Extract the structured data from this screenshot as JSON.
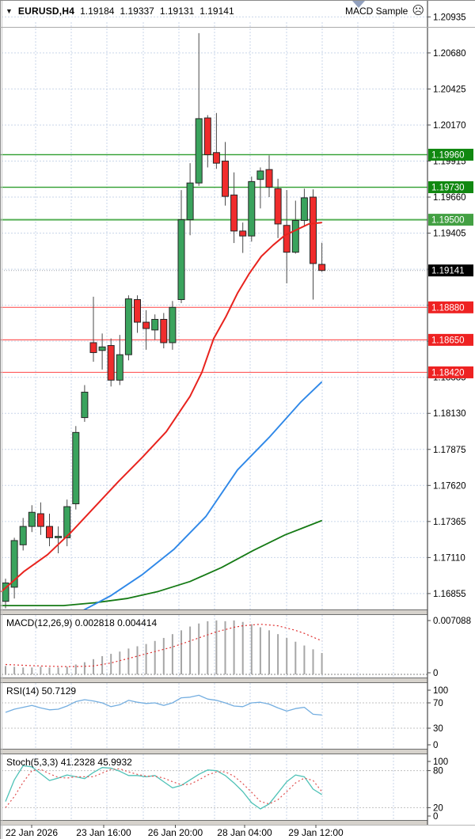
{
  "header": {
    "dropdown_icon": "▼",
    "symbol": "EURUSD,H4",
    "open": "1.19184",
    "high": "1.19337",
    "low": "1.19131",
    "close": "1.19141",
    "ea_name": "MACD Sample",
    "ea_icon_glyph": "☹"
  },
  "colors": {
    "grid": "#C9D6E9",
    "candle_up": "#3AA35D",
    "candle_down": "#F02C2C",
    "candle_outline": "#262626",
    "wick": "#4A4A4A",
    "ma_red": "#E8231E",
    "ma_blue": "#2F88E8",
    "ma_green": "#157A15",
    "macd_hist": "#A6A6A6",
    "macd_signal": "#E03030",
    "rsi_line": "#74AEE0",
    "stoch_k": "#4FC2B7",
    "stoch_d": "#E05050",
    "level_dotted": "#C0C0C0",
    "axis_text": "#000000",
    "border": "#6E6E6E",
    "splitter": "#D6D2CC",
    "current_line": "#A0A6B0"
  },
  "chart_data": {
    "type": "candlestick",
    "symbol": "EURUSD",
    "timeframe": "H4",
    "price_axis": {
      "ticks": [
        "1.20935",
        "1.20680",
        "1.20425",
        "1.20170",
        "1.19915",
        "1.19660",
        "1.19405",
        "1.19150",
        "1.18895",
        "1.18640",
        "1.18385",
        "1.18130",
        "1.17875",
        "1.17620",
        "1.17365",
        "1.17110",
        "1.16855"
      ]
    },
    "time_labels": [
      "22 Jan 2026",
      "23 Jan 16:00",
      "26 Jan 20:00",
      "28 Jan 04:00",
      "29 Jan 12:00"
    ],
    "candles": [
      [
        1.168,
        1.1696,
        1.1675,
        1.1693
      ],
      [
        1.169,
        1.1725,
        1.1682,
        1.1723
      ],
      [
        1.172,
        1.1739,
        1.1716,
        1.1733
      ],
      [
        1.1733,
        1.1748,
        1.1729,
        1.1743
      ],
      [
        1.1742,
        1.175,
        1.1727,
        1.1733
      ],
      [
        1.1733,
        1.1742,
        1.1719,
        1.1725
      ],
      [
        1.1725,
        1.1733,
        1.1714,
        1.1726
      ],
      [
        1.1725,
        1.1752,
        1.1719,
        1.1747
      ],
      [
        1.1749,
        1.1804,
        1.1745,
        1.17995
      ],
      [
        1.181,
        1.1833,
        1.1807,
        1.1828
      ],
      [
        1.1863,
        1.18955,
        1.18495,
        1.1856
      ],
      [
        1.18575,
        1.18695,
        1.1844,
        1.186
      ],
      [
        1.1861,
        1.1866,
        1.1832,
        1.18365
      ],
      [
        1.18365,
        1.18685,
        1.1833,
        1.18545
      ],
      [
        1.18545,
        1.18965,
        1.18505,
        1.1894
      ],
      [
        1.18935,
        1.18965,
        1.187,
        1.18775
      ],
      [
        1.18775,
        1.1886,
        1.1858,
        1.1873
      ],
      [
        1.1872,
        1.1883,
        1.1865,
        1.18795
      ],
      [
        1.18795,
        1.1884,
        1.1859,
        1.1863
      ],
      [
        1.1863,
        1.18925,
        1.1858,
        1.1888
      ],
      [
        1.18935,
        1.1971,
        1.1891,
        1.195
      ],
      [
        1.195,
        1.199,
        1.1939,
        1.1976
      ],
      [
        1.1976,
        1.2082,
        1.1974,
        1.20215
      ],
      [
        1.2022,
        1.2024,
        1.1987,
        1.1996
      ],
      [
        1.19975,
        1.20255,
        1.1986,
        1.199
      ],
      [
        1.19915,
        1.2005,
        1.196,
        1.19665
      ],
      [
        1.19675,
        1.19835,
        1.19335,
        1.1942
      ],
      [
        1.1942,
        1.1948,
        1.19265,
        1.19385
      ],
      [
        1.19385,
        1.19805,
        1.19345,
        1.1977
      ],
      [
        1.19785,
        1.1987,
        1.1958,
        1.19845
      ],
      [
        1.19855,
        1.19955,
        1.1966,
        1.1973
      ],
      [
        1.1972,
        1.1979,
        1.1937,
        1.1947
      ],
      [
        1.1946,
        1.1971,
        1.1905,
        1.1927
      ],
      [
        1.1927,
        1.19635,
        1.1926,
        1.19495
      ],
      [
        1.19495,
        1.1972,
        1.1945,
        1.19655
      ],
      [
        1.1966,
        1.19715,
        1.18935,
        1.1919
      ],
      [
        1.19184,
        1.19337,
        1.19131,
        1.19141
      ]
    ],
    "levels": {
      "resistance": [
        {
          "label": "1.19960",
          "line": "#2E9E2E",
          "badge": "#118811",
          "width": 1.4
        },
        {
          "label": "1.19730",
          "line": "#2E9E2E",
          "badge": "#118811",
          "width": 1.4
        },
        {
          "label": "1.19500",
          "line": "#55AF55",
          "badge": "#43A043",
          "width": 2
        }
      ],
      "support": [
        {
          "label": "1.18880",
          "line": "#FF5C5C",
          "badge": "#EE2222",
          "width": 1.2
        },
        {
          "label": "1.18650",
          "line": "#FF5C5C",
          "badge": "#EE2222",
          "width": 1.2
        },
        {
          "label": "1.18420",
          "line": "#FF5C5C",
          "badge": "#EE2222",
          "width": 1.2
        }
      ],
      "current": {
        "label": "1.19141",
        "badge": "#000000"
      }
    },
    "moving_averages": {
      "red": [
        [
          2,
          1.1687
        ],
        [
          30,
          1.1701
        ],
        [
          60,
          1.1713
        ],
        [
          90,
          1.1729
        ],
        [
          120,
          1.1747
        ],
        [
          150,
          1.1765
        ],
        [
          180,
          1.1782
        ],
        [
          210,
          1.18
        ],
        [
          240,
          1.1825
        ],
        [
          255,
          1.1842
        ],
        [
          270,
          1.1866
        ],
        [
          285,
          1.1881
        ],
        [
          300,
          1.1898
        ],
        [
          315,
          1.1912
        ],
        [
          330,
          1.1924
        ],
        [
          345,
          1.1932
        ],
        [
          360,
          1.1939
        ],
        [
          375,
          1.1943
        ],
        [
          390,
          1.1947
        ],
        [
          406,
          1.1948
        ]
      ],
      "blue": [
        [
          103,
          1.1673
        ],
        [
          140,
          1.1684
        ],
        [
          180,
          1.1699
        ],
        [
          220,
          1.1717
        ],
        [
          260,
          1.174
        ],
        [
          300,
          1.1773
        ],
        [
          340,
          1.1796
        ],
        [
          380,
          1.1821
        ],
        [
          406,
          1.1835
        ]
      ],
      "green": [
        [
          2,
          1.1677
        ],
        [
          80,
          1.1677
        ],
        [
          120,
          1.1679
        ],
        [
          160,
          1.1682
        ],
        [
          200,
          1.1687
        ],
        [
          240,
          1.1694
        ],
        [
          280,
          1.1704
        ],
        [
          320,
          1.1716
        ],
        [
          360,
          1.1727
        ],
        [
          406,
          1.1737
        ]
      ]
    },
    "indicators": {
      "macd": {
        "label": "MACD(12,26,9)",
        "value": "0.002818",
        "signal_value": "0.004414",
        "axis": [
          "0.007088",
          "0"
        ],
        "histogram": [
          0.0011,
          0.001,
          0.0009,
          0.0009,
          0.001,
          0.0009,
          0.0009,
          0.001,
          0.0013,
          0.0016,
          0.002,
          0.0024,
          0.0027,
          0.003,
          0.0034,
          0.0037,
          0.004,
          0.0044,
          0.0048,
          0.0053,
          0.0058,
          0.0063,
          0.0067,
          0.007,
          0.0071,
          0.007,
          0.0071,
          0.0069,
          0.0066,
          0.0062,
          0.0058,
          0.0053,
          0.0048,
          0.0043,
          0.0038,
          0.0033,
          0.002818
        ],
        "signal": [
          0.0013,
          0.00125,
          0.0012,
          0.00115,
          0.0011,
          0.00107,
          0.00104,
          0.00102,
          0.00103,
          0.00106,
          0.0011,
          0.0013,
          0.0015,
          0.0018,
          0.0021,
          0.0024,
          0.0027,
          0.003,
          0.0033,
          0.0036,
          0.004,
          0.0044,
          0.0048,
          0.0052,
          0.0056,
          0.0059,
          0.0062,
          0.0064,
          0.0065,
          0.0066,
          0.0065,
          0.0064,
          0.0061,
          0.0058,
          0.0054,
          0.0049,
          0.004414
        ]
      },
      "rsi": {
        "label": "RSI(14)",
        "value": "50.7129",
        "axis": [
          100,
          70,
          30,
          0
        ],
        "level_lines": [
          70,
          30
        ],
        "series": [
          55,
          60,
          63,
          66,
          62,
          59,
          60,
          65,
          72,
          75,
          73,
          70,
          64,
          67,
          74,
          71,
          69,
          70,
          66,
          70,
          78,
          79,
          82,
          76,
          74,
          70,
          65,
          64,
          70,
          71,
          68,
          62,
          57,
          61,
          63,
          52,
          50.7
        ]
      },
      "stoch": {
        "label": "Stoch(5,3,3)",
        "value_k": "41.2328",
        "value_d": "45.9932",
        "axis": [
          100,
          80,
          20,
          0
        ],
        "level_lines": [
          80,
          20
        ],
        "k": [
          30,
          65,
          88,
          86,
          75,
          64,
          68,
          73,
          70,
          67,
          77,
          85,
          84,
          79,
          72,
          72,
          70,
          72,
          62,
          52,
          56,
          65,
          74,
          81,
          80,
          72,
          60,
          46,
          28,
          18,
          26,
          44,
          62,
          73,
          70,
          50,
          41.2
        ],
        "d": [
          20,
          38,
          61,
          80,
          82,
          75,
          69,
          68,
          70,
          70,
          70,
          76,
          82,
          83,
          78,
          74,
          71,
          71,
          68,
          62,
          57,
          58,
          65,
          73,
          78,
          78,
          71,
          59,
          45,
          30,
          26,
          33,
          46,
          60,
          68,
          64,
          46.0
        ]
      }
    }
  }
}
